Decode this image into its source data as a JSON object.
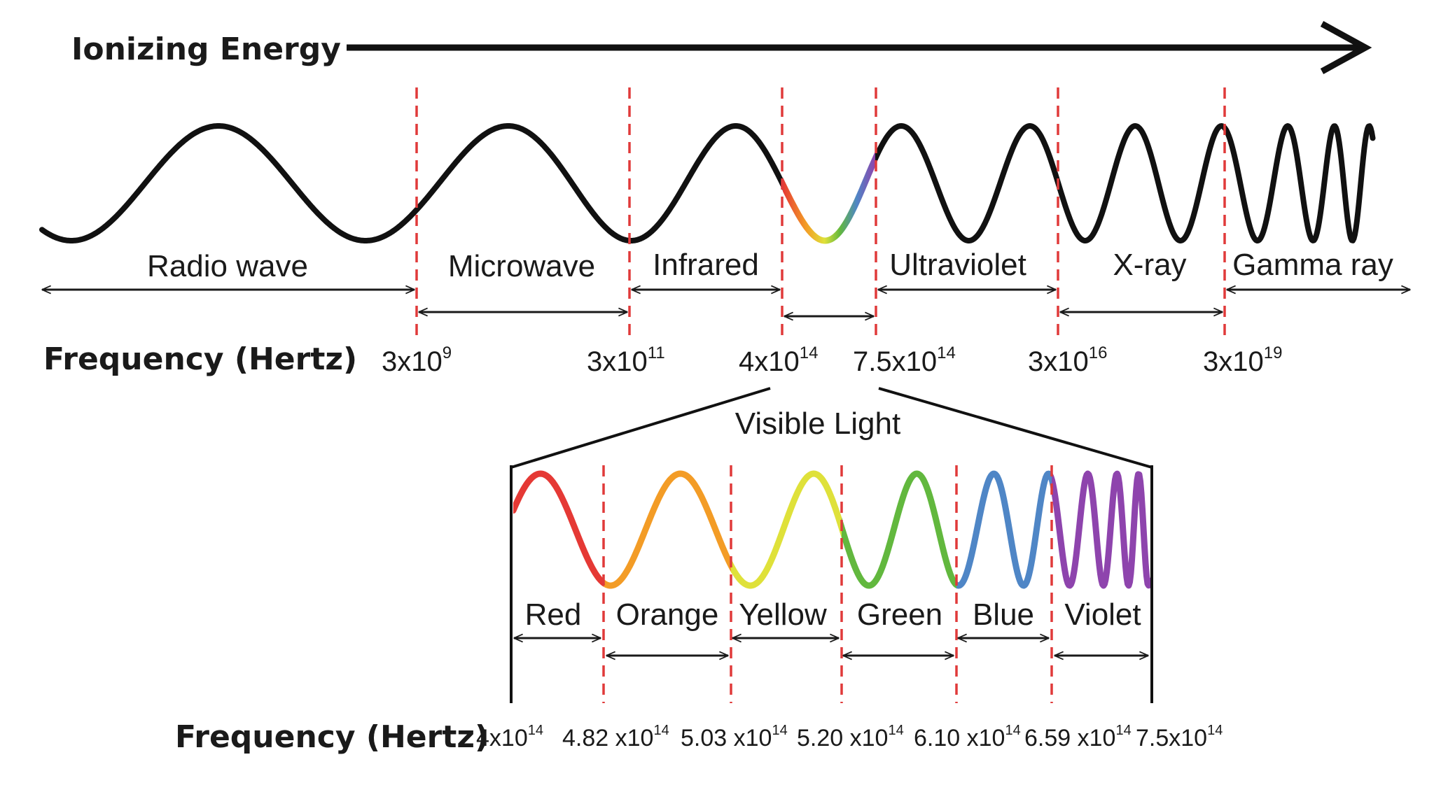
{
  "title": "Ionizing Energy",
  "top_spectrum": {
    "regions": [
      "Radio wave",
      "Microwave",
      "Infrared",
      "Ultraviolet",
      "X-ray",
      "Gamma ray"
    ],
    "frequency_label": "Frequency (Hertz)",
    "frequencies": [
      {
        "base": "3x10",
        "exp": "9"
      },
      {
        "base": "3x10",
        "exp": "11"
      },
      {
        "base": "4x10",
        "exp": "14"
      },
      {
        "base": "7.5x10",
        "exp": "14"
      },
      {
        "base": "3x10",
        "exp": "16"
      },
      {
        "base": "3x10",
        "exp": "19"
      }
    ]
  },
  "visible_light": {
    "title": "Visible Light",
    "bands": [
      "Red",
      "Orange",
      "Yellow",
      "Green",
      "Blue",
      "Violet"
    ],
    "frequency_label": "Frequency (Hertz)",
    "frequencies": [
      {
        "base": "4x10",
        "exp": "14"
      },
      {
        "base": "4.82 x10",
        "exp": "14"
      },
      {
        "base": "5.03 x10",
        "exp": "14"
      },
      {
        "base": "5.20 x10",
        "exp": "14"
      },
      {
        "base": "6.10 x10",
        "exp": "14"
      },
      {
        "base": "6.59 x10",
        "exp": "14"
      },
      {
        "base": "7.5x10",
        "exp": "14"
      }
    ]
  },
  "colors": {
    "wave": "#111111",
    "divider": "#e03a3a",
    "red": "#e53935",
    "orange": "#f39c26",
    "yellow": "#dfe13a",
    "green": "#62b83e",
    "blue": "#4f86c6",
    "violet": "#8e44ad"
  }
}
